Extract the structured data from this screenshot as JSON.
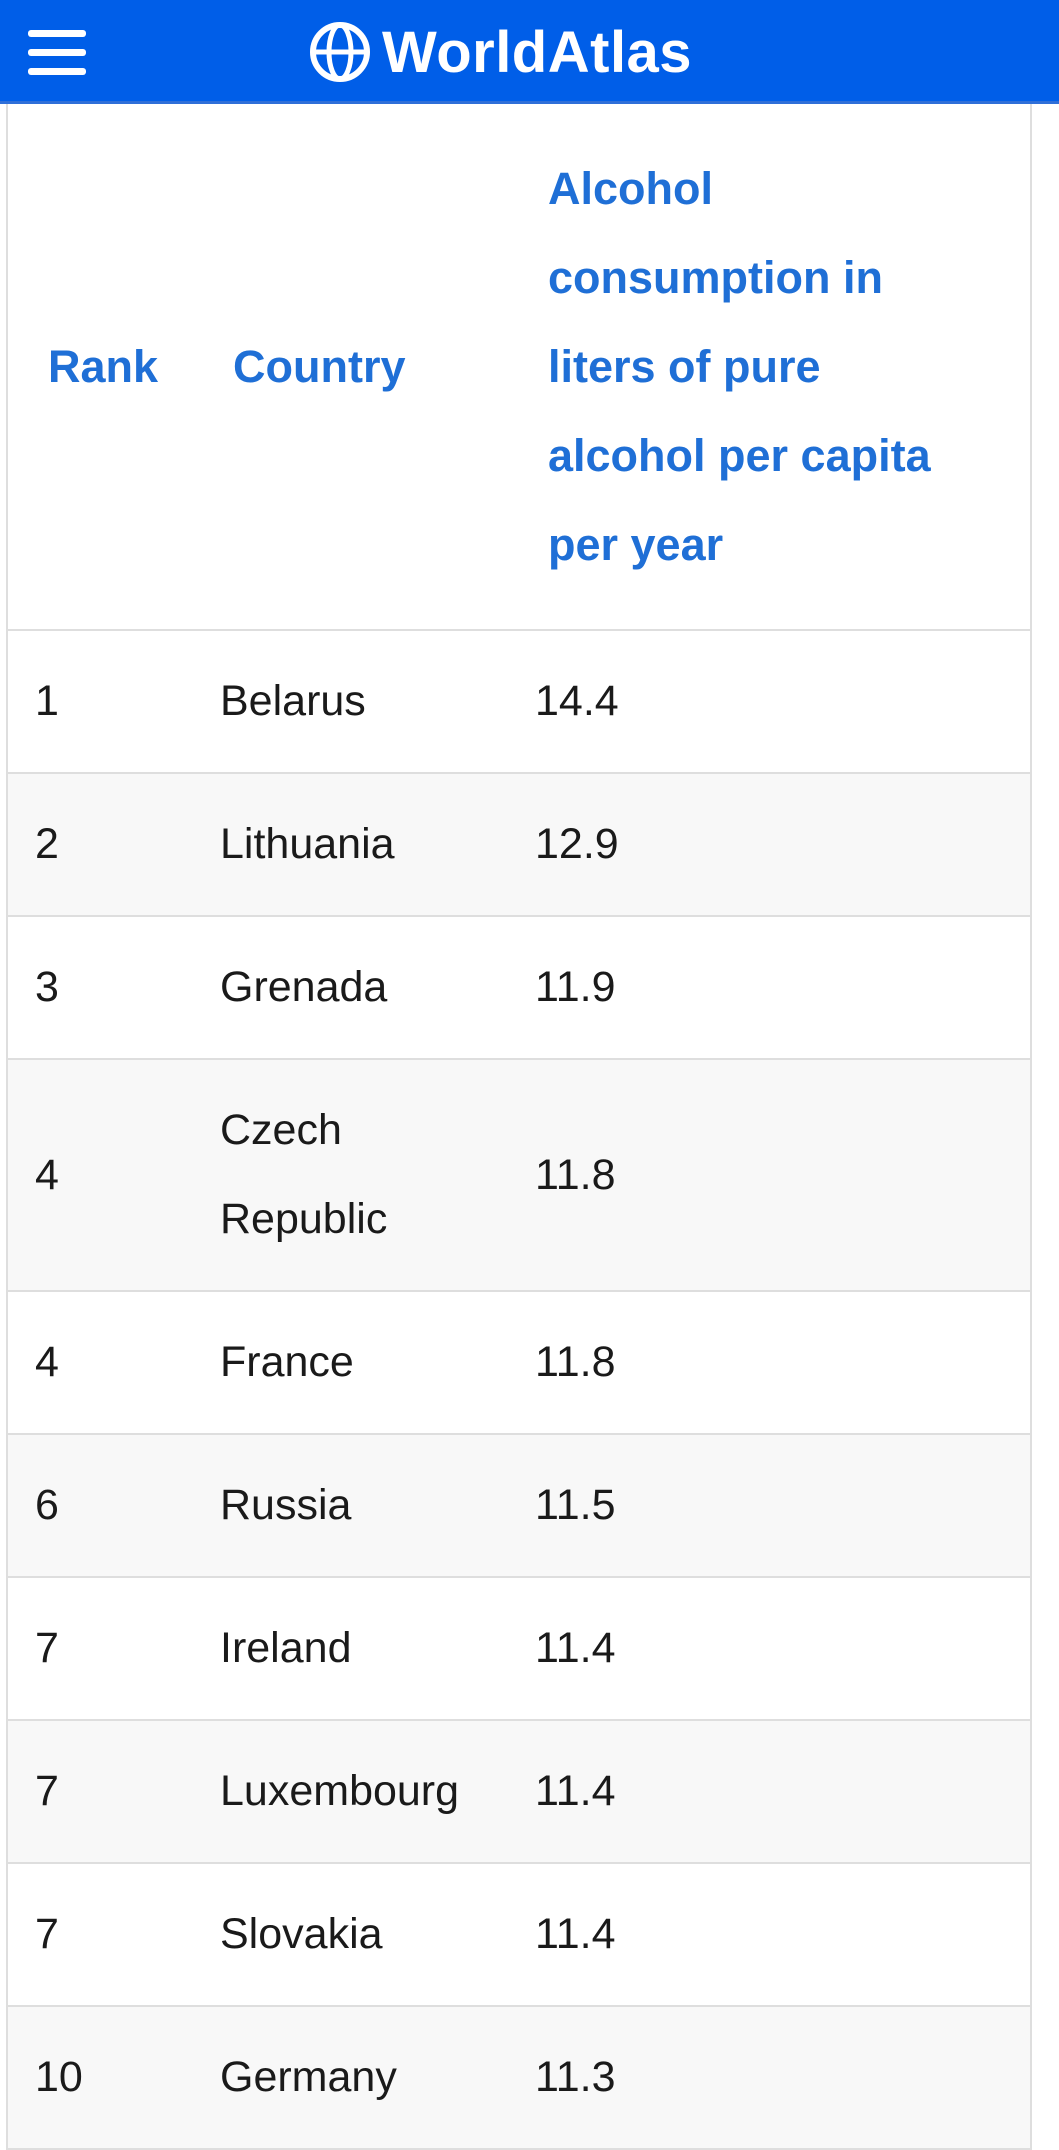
{
  "header": {
    "brand": "WorldAtlas",
    "menu_icon": "hamburger-menu-icon",
    "logo_icon": "globe-icon",
    "background_color": "#005ee8"
  },
  "table": {
    "headers": {
      "rank": "Rank",
      "country": "Country",
      "consumption": "Alcohol consumption in liters of pure alcohol per capita per year"
    },
    "rows": [
      {
        "rank": "1",
        "country": "Belarus",
        "value": "14.4"
      },
      {
        "rank": "2",
        "country": "Lithuania",
        "value": "12.9"
      },
      {
        "rank": "3",
        "country": "Grenada",
        "value": "11.9"
      },
      {
        "rank": "4",
        "country": "Czech Republic",
        "value": "11.8"
      },
      {
        "rank": "4",
        "country": "France",
        "value": "11.8"
      },
      {
        "rank": "6",
        "country": "Russia",
        "value": "11.5"
      },
      {
        "rank": "7",
        "country": "Ireland",
        "value": "11.4"
      },
      {
        "rank": "7",
        "country": "Luxembourg",
        "value": "11.4"
      },
      {
        "rank": "7",
        "country": "Slovakia",
        "value": "11.4"
      },
      {
        "rank": "10",
        "country": "Germany",
        "value": "11.3"
      }
    ]
  }
}
